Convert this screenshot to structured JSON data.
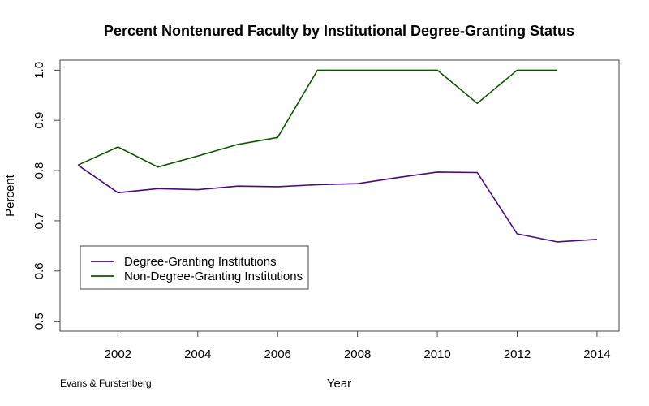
{
  "chart_data": {
    "type": "line",
    "title": "Percent Nontenured Faculty by Institutional Degree-Granting Status",
    "xlabel": "Year",
    "ylabel": "Percent",
    "xlim": [
      2000.55,
      2014.55
    ],
    "ylim": [
      0.48,
      1.02
    ],
    "x_ticks": [
      2002,
      2004,
      2006,
      2008,
      2010,
      2012,
      2014
    ],
    "y_ticks": [
      0.5,
      0.6,
      0.7,
      0.8,
      0.9,
      1.0
    ],
    "y_tick_labels": [
      "0.5",
      "0.6",
      "0.7",
      "0.8",
      "0.9",
      "1.0"
    ],
    "grid": false,
    "legend_position": "bottom-left",
    "series": [
      {
        "name": "Degree-Granting Institutions",
        "color": "#4b0a7c",
        "x": [
          2001,
          2002,
          2003,
          2004,
          2005,
          2006,
          2007,
          2008,
          2009,
          2010,
          2011,
          2012,
          2013,
          2014
        ],
        "values": [
          0.811,
          0.756,
          0.764,
          0.762,
          0.769,
          0.768,
          0.772,
          0.774,
          0.786,
          0.797,
          0.796,
          0.674,
          0.658,
          0.663
        ]
      },
      {
        "name": "Non-Degree-Granting Institutions",
        "color": "#0f5500",
        "x": [
          2001,
          2002,
          2003,
          2004,
          2005,
          2006,
          2007,
          2008,
          2009,
          2010,
          2011,
          2012,
          2013
        ],
        "values": [
          0.811,
          0.847,
          0.807,
          0.829,
          0.852,
          0.866,
          1.0,
          1.0,
          1.0,
          1.0,
          0.934,
          1.0,
          1.0
        ]
      }
    ]
  },
  "footer": {
    "credit": "Evans & Furstenberg"
  }
}
